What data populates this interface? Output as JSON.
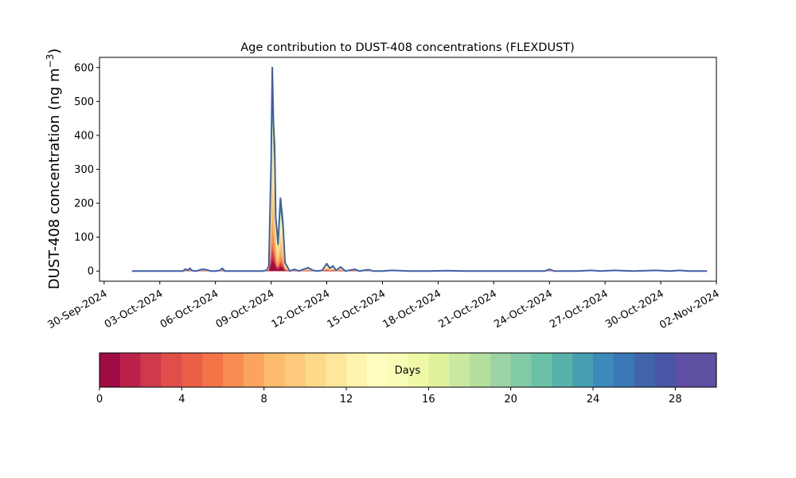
{
  "chart_data": {
    "type": "area",
    "title": "Age contribution to DUST-408 concentrations (FLEXDUST)",
    "ylabel": "DUST-408 concentration (ng m",
    "ylabel_sup": "−3",
    "ylabel_close": ")",
    "xlabel": "",
    "ylim": [
      -30,
      630
    ],
    "yticks": [
      0,
      100,
      200,
      300,
      400,
      500,
      600
    ],
    "xlim": [
      "2024-09-29T18:00",
      "2024-11-02T00:00"
    ],
    "xticks": [
      "2024-09-30",
      "2024-10-03",
      "2024-10-06",
      "2024-10-09",
      "2024-10-12",
      "2024-10-15",
      "2024-10-18",
      "2024-10-21",
      "2024-10-24",
      "2024-10-27",
      "2024-10-30",
      "2024-11-02"
    ],
    "xtick_labels": [
      "30-Sep-2024",
      "03-Oct-2024",
      "06-Oct-2024",
      "09-Oct-2024",
      "12-Oct-2024",
      "15-Oct-2024",
      "18-Oct-2024",
      "21-Oct-2024",
      "24-Oct-2024",
      "27-Oct-2024",
      "30-Oct-2024",
      "02-Nov-2024"
    ],
    "grid": false,
    "colormap": "Spectral",
    "total_series": {
      "name": "",
      "color": "#3f60a8",
      "points": [
        [
          "2024-10-01T12:00",
          0
        ],
        [
          "2024-10-02T12:00",
          0
        ],
        [
          "2024-10-03T12:00",
          0
        ],
        [
          "2024-10-04T00:00",
          0
        ],
        [
          "2024-10-04T06:00",
          0
        ],
        [
          "2024-10-04T09:00",
          6
        ],
        [
          "2024-10-04T12:00",
          2
        ],
        [
          "2024-10-04T15:00",
          8
        ],
        [
          "2024-10-04T18:00",
          1
        ],
        [
          "2024-10-05T00:00",
          0
        ],
        [
          "2024-10-05T06:00",
          5
        ],
        [
          "2024-10-05T12:00",
          4
        ],
        [
          "2024-10-05T18:00",
          0
        ],
        [
          "2024-10-06T00:00",
          0
        ],
        [
          "2024-10-06T06:00",
          2
        ],
        [
          "2024-10-06T09:00",
          8
        ],
        [
          "2024-10-06T12:00",
          0
        ],
        [
          "2024-10-07T12:00",
          0
        ],
        [
          "2024-10-08T12:00",
          0
        ],
        [
          "2024-10-08T18:00",
          2
        ],
        [
          "2024-10-08T21:00",
          15
        ],
        [
          "2024-10-09T00:00",
          320
        ],
        [
          "2024-10-09T01:30",
          600
        ],
        [
          "2024-10-09T03:00",
          440
        ],
        [
          "2024-10-09T04:30",
          370
        ],
        [
          "2024-10-09T06:00",
          160
        ],
        [
          "2024-10-09T09:00",
          80
        ],
        [
          "2024-10-09T12:00",
          215
        ],
        [
          "2024-10-09T15:00",
          150
        ],
        [
          "2024-10-09T18:00",
          25
        ],
        [
          "2024-10-10T00:00",
          0
        ],
        [
          "2024-10-10T06:00",
          5
        ],
        [
          "2024-10-10T12:00",
          0
        ],
        [
          "2024-10-10T18:00",
          5
        ],
        [
          "2024-10-11T00:00",
          10
        ],
        [
          "2024-10-11T06:00",
          2
        ],
        [
          "2024-10-11T12:00",
          0
        ],
        [
          "2024-10-11T18:00",
          2
        ],
        [
          "2024-10-12T00:00",
          22
        ],
        [
          "2024-10-12T04:00",
          8
        ],
        [
          "2024-10-12T08:00",
          15
        ],
        [
          "2024-10-12T12:00",
          2
        ],
        [
          "2024-10-12T18:00",
          12
        ],
        [
          "2024-10-13T00:00",
          0
        ],
        [
          "2024-10-13T12:00",
          5
        ],
        [
          "2024-10-13T18:00",
          0
        ],
        [
          "2024-10-14T06:00",
          4
        ],
        [
          "2024-10-14T12:00",
          0
        ],
        [
          "2024-10-15T00:00",
          0
        ],
        [
          "2024-10-15T12:00",
          2
        ],
        [
          "2024-10-16T12:00",
          0
        ],
        [
          "2024-10-17T12:00",
          0
        ],
        [
          "2024-10-18T12:00",
          1
        ],
        [
          "2024-10-19T12:00",
          0
        ],
        [
          "2024-10-20T12:00",
          0
        ],
        [
          "2024-10-21T12:00",
          0
        ],
        [
          "2024-10-22T12:00",
          0
        ],
        [
          "2024-10-23T18:00",
          0
        ],
        [
          "2024-10-24T00:00",
          5
        ],
        [
          "2024-10-24T06:00",
          0
        ],
        [
          "2024-10-25T12:00",
          0
        ],
        [
          "2024-10-26T06:00",
          2
        ],
        [
          "2024-10-26T18:00",
          0
        ],
        [
          "2024-10-27T12:00",
          2
        ],
        [
          "2024-10-28T12:00",
          0
        ],
        [
          "2024-10-29T18:00",
          2
        ],
        [
          "2024-10-30T12:00",
          0
        ],
        [
          "2024-10-31T00:00",
          2
        ],
        [
          "2024-10-31T12:00",
          0
        ],
        [
          "2024-11-01T00:00",
          0
        ],
        [
          "2024-11-01T12:00",
          0
        ]
      ]
    },
    "colorbar": {
      "label": "Days",
      "vmin": 0,
      "vmax": 30,
      "n_bins": 30,
      "ticks": [
        0,
        4,
        8,
        12,
        16,
        20,
        24,
        28
      ],
      "colors": [
        "#a00c44",
        "#bb2249",
        "#d0384c",
        "#e04e4a",
        "#ea6047",
        "#f47447",
        "#f88d53",
        "#fba45d",
        "#fdbb6c",
        "#fec97a",
        "#fed98a",
        "#fee69b",
        "#fff3ad",
        "#fffebe",
        "#f8fcb4",
        "#eef8a7",
        "#dff299",
        "#cbe99e",
        "#b5df9f",
        "#9cd4a4",
        "#82caa5",
        "#6bc1a5",
        "#58b1aa",
        "#479eb2",
        "#3b8aba",
        "#3977b6",
        "#4065ab",
        "#4956a5",
        "#5e4fa2",
        "#5e4fa2"
      ]
    }
  }
}
